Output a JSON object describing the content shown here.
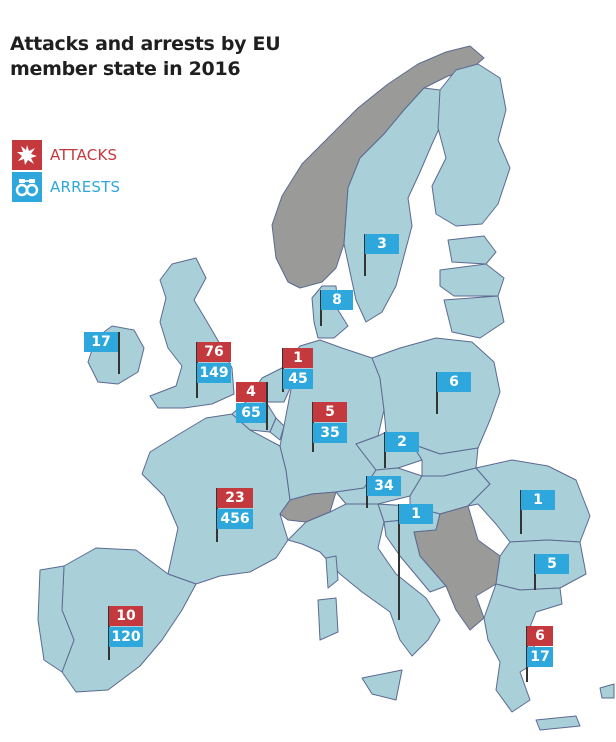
{
  "title_lines": [
    "Attacks and arrests by EU",
    "member state in 2016"
  ],
  "legend": {
    "attacks": {
      "label": "ATTACKS",
      "icon": "explosion-icon",
      "color": "#c3393d"
    },
    "arrests": {
      "label": "ARRESTS",
      "icon": "handcuffs-icon",
      "color": "#2ea8dc"
    }
  },
  "colors": {
    "eu_member": "#a9cfd8",
    "non_member": "#9a9a98",
    "border": "#5c6a92",
    "sea": "#ffffff"
  },
  "markers": [
    {
      "id": "ireland",
      "arrests": "17"
    },
    {
      "id": "uk",
      "attacks": "76",
      "arrests": "149"
    },
    {
      "id": "belgium",
      "attacks": "4",
      "arrests": "65"
    },
    {
      "id": "netherlands",
      "attacks": "1",
      "arrests": "45"
    },
    {
      "id": "germany",
      "attacks": "5",
      "arrests": "35"
    },
    {
      "id": "denmark",
      "arrests": "8"
    },
    {
      "id": "sweden",
      "arrests": "3"
    },
    {
      "id": "poland",
      "arrests": "6"
    },
    {
      "id": "czechia",
      "arrests": "2"
    },
    {
      "id": "austria",
      "arrests": "34"
    },
    {
      "id": "slovenia",
      "arrests": "1"
    },
    {
      "id": "france",
      "attacks": "23",
      "arrests": "456"
    },
    {
      "id": "spain",
      "attacks": "10",
      "arrests": "120"
    },
    {
      "id": "romania",
      "arrests": "1"
    },
    {
      "id": "bulgaria",
      "arrests": "5"
    },
    {
      "id": "greece",
      "attacks": "6",
      "arrests": "17"
    }
  ]
}
